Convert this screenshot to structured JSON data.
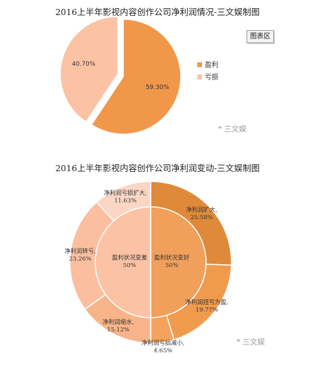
{
  "ui": {
    "chart_area_chip": "图表区",
    "watermark_icon": "chat-bubble-icon",
    "watermark_text": "三文娱"
  },
  "colors": {
    "profit": "#f1974a",
    "loss": "#fbc3a3",
    "outer": [
      "#df8a3a",
      "#ef9a4d",
      "#f5a35c",
      "#f8b488",
      "#fbbfa0",
      "#fbd6c4"
    ],
    "inner": [
      "#f1a05c",
      "#fcc2a4"
    ]
  },
  "chart_data": [
    {
      "type": "pie",
      "title": "2016上半年影视内容创作公司净利润情况-三文娱制图",
      "categories": [
        "盈利",
        "亏损"
      ],
      "values": [
        59.3,
        40.7
      ],
      "labels": [
        "59.30%",
        "40.70%"
      ],
      "legend_position": "right",
      "exploded": "亏损"
    },
    {
      "type": "pie",
      "subtype": "sunburst",
      "title": "2016上半年影视内容创作公司净利润变动-三文娱制图",
      "inner": [
        {
          "name": "盈利状况变好",
          "value": 50,
          "label": "50%"
        },
        {
          "name": "盈利状况变差",
          "value": 50,
          "label": "50%"
        }
      ],
      "outer": [
        {
          "name": "净利润扩大,",
          "value": 25.58,
          "label": "25.58%",
          "parent": "盈利状况变好"
        },
        {
          "name": "净利润扭亏为盈,",
          "value": 19.77,
          "label": "19.77%",
          "parent": "盈利状况变好"
        },
        {
          "name": "净利润亏损减小,",
          "value": 4.65,
          "label": "4.65%",
          "parent": "盈利状况变好"
        },
        {
          "name": "净利润缩水,",
          "value": 15.12,
          "label": "15.12%",
          "parent": "盈利状况变差"
        },
        {
          "name": "净利润转亏,",
          "value": 23.26,
          "label": "23.26%",
          "parent": "盈利状况变差"
        },
        {
          "name": "净利润亏损扩大,",
          "value": 11.63,
          "label": "11.63%",
          "parent": "盈利状况变差"
        }
      ]
    }
  ]
}
